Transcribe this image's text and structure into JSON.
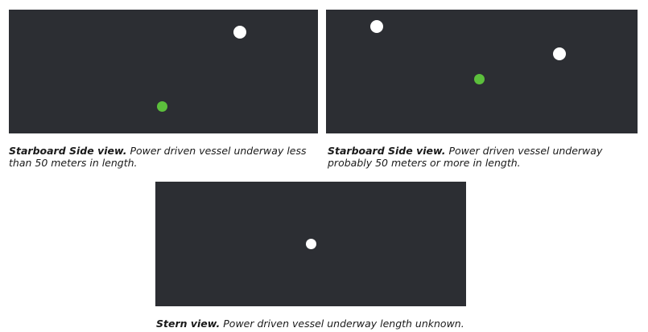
{
  "panels": [
    {
      "caption_bold": "Starboard Side view.",
      "caption_text": " Power driven vessel underway less than 50 meters in length.",
      "lights": [
        "white",
        "green"
      ]
    },
    {
      "caption_bold": "Starboard Side view.",
      "caption_text": " Power driven vessel underway probably 50 meters or more in length.",
      "lights": [
        "white",
        "white",
        "green"
      ]
    },
    {
      "caption_bold": "Stern view.",
      "caption_text": " Power driven vessel underway length unknown.",
      "lights": [
        "white"
      ]
    }
  ],
  "colors": {
    "background": "#2c2e33",
    "white_light": "#ffffff",
    "green_light": "#5cbf3c"
  }
}
